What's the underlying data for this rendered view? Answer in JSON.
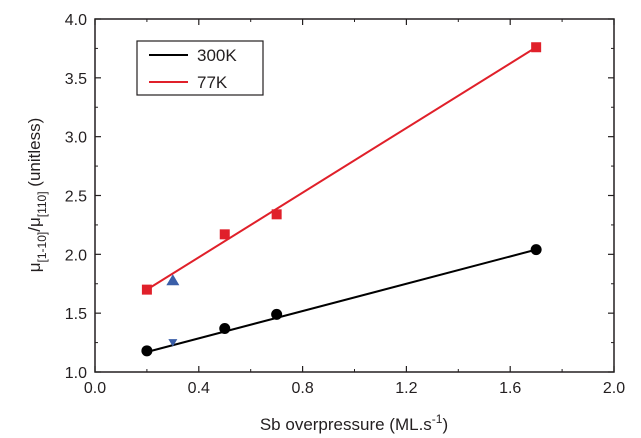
{
  "chart_data": {
    "type": "scatter",
    "title": "",
    "xlabel": {
      "main": "Sb overpressure (ML.s",
      "sup": "-1",
      "close": ")"
    },
    "ylabel": {
      "mu1": "μ",
      "sub1": "[1-10]",
      "slash": "/μ",
      "sub2": "[110]",
      "unit": " (unitless)"
    },
    "xlim": [
      0.0,
      2.0
    ],
    "ylim": [
      1.0,
      4.0
    ],
    "xticks": [
      "0.0",
      "0.4",
      "0.8",
      "1.2",
      "1.6",
      "2.0"
    ],
    "xtick_values": [
      0.0,
      0.4,
      0.8,
      1.2,
      1.6,
      2.0
    ],
    "yticks": [
      "1.0",
      "1.5",
      "2.0",
      "2.5",
      "3.0",
      "3.5",
      "4.0"
    ],
    "ytick_values": [
      1.0,
      1.5,
      2.0,
      2.5,
      3.0,
      3.5,
      4.0
    ],
    "grid": false,
    "legend_position": "top-left",
    "series": [
      {
        "name": "300K",
        "color": "#000000",
        "marker": "circle",
        "x": [
          0.2,
          0.5,
          0.7,
          1.7
        ],
        "y": [
          1.18,
          1.37,
          1.49,
          2.04
        ],
        "fit": [
          [
            0.2,
            1.17
          ],
          [
            1.7,
            2.04
          ]
        ]
      },
      {
        "name": "77K",
        "color": "#e0202a",
        "marker": "square",
        "x": [
          0.2,
          0.5,
          0.7,
          1.7
        ],
        "y": [
          1.7,
          2.17,
          2.34,
          3.76
        ],
        "fit": [
          [
            0.2,
            1.7
          ],
          [
            1.7,
            3.76
          ]
        ]
      }
    ],
    "extra_points": [
      {
        "marker": "triangle-up",
        "color": "#3a5ea8",
        "x": 0.3,
        "y": 1.78
      },
      {
        "marker": "triangle-down",
        "color": "#3a5ea8",
        "x": 0.3,
        "y": 1.25
      }
    ]
  }
}
